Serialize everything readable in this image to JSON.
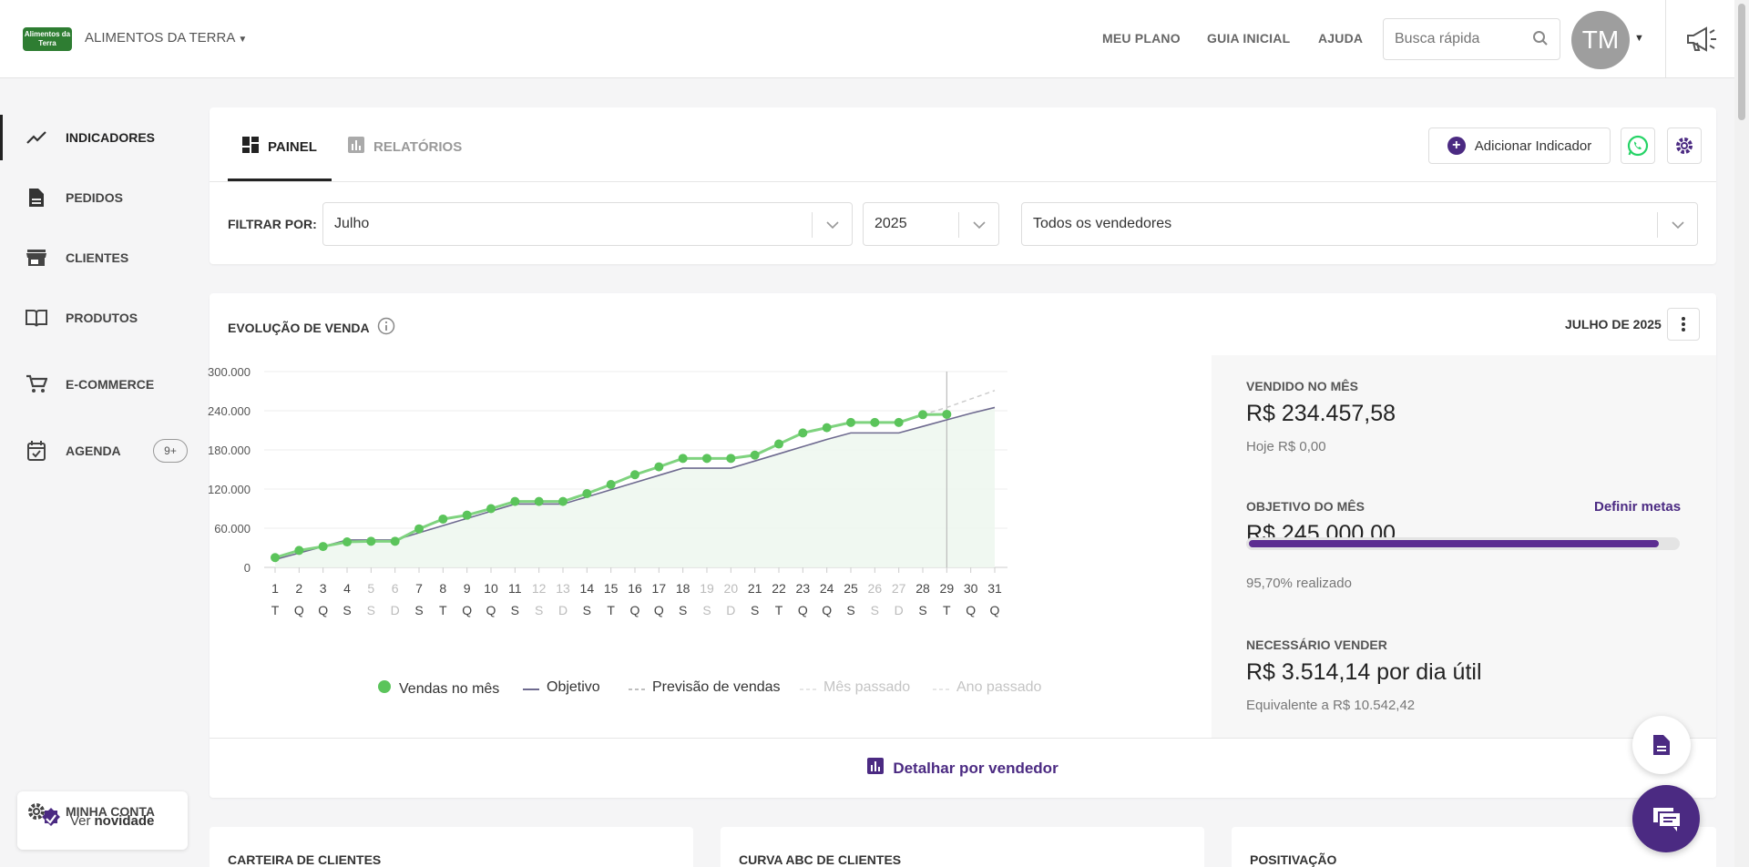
{
  "header": {
    "logo_text": "Alimentos da Terra",
    "company": "ALIMENTOS DA TERRA",
    "links": [
      "MEU PLANO",
      "GUIA INICIAL",
      "AJUDA"
    ],
    "search_placeholder": "Busca rápida",
    "avatar_initials": "TM"
  },
  "sidebar": {
    "items": [
      {
        "label": "INDICADORES",
        "icon": "trending-up-icon"
      },
      {
        "label": "PEDIDOS",
        "icon": "document-icon"
      },
      {
        "label": "CLIENTES",
        "icon": "store-icon"
      },
      {
        "label": "PRODUTOS",
        "icon": "book-icon"
      },
      {
        "label": "E-COMMERCE",
        "icon": "cart-icon"
      },
      {
        "label": "AGENDA",
        "icon": "calendar-check-icon",
        "badge": "9+"
      }
    ],
    "novidade_prefix": "Ver",
    "novidade_bold": "novidade",
    "account": "MINHA CONTA"
  },
  "tabs": {
    "painel": "PAINEL",
    "relatorios": "RELATÓRIOS",
    "add_indicator": "Adicionar Indicador"
  },
  "filters": {
    "label": "FILTRAR POR:",
    "month": "Julho",
    "year": "2025",
    "seller": "Todos os vendedores"
  },
  "chart_panel": {
    "title": "EVOLUÇÃO DE VENDA",
    "period": "JULHO DE 2025",
    "detail_link": "Detalhar por vendedor"
  },
  "stats": {
    "sold_label": "VENDIDO NO MÊS",
    "sold_value": "R$ 234.457,58",
    "today": "Hoje R$ 0,00",
    "goal_label": "OBJETIVO DO MÊS",
    "goal_link": "Definir metas",
    "goal_value": "R$ 245.000,00",
    "goal_progress": 0.957,
    "goal_done": "95,70% realizado",
    "need_label": "NECESSÁRIO VENDER",
    "need_value": "R$ 3.514,14 por dia útil",
    "need_equiv": "Equivalente a R$ 10.542,42"
  },
  "bottom_cards": [
    "CARTEIRA DE CLIENTES",
    "CURVA ABC DE CLIENTES",
    "POSITIVAÇÃO"
  ],
  "colors": {
    "accent": "#4b2a82",
    "sales_green": "#5bc45b",
    "goal_line": "#6e6a8f",
    "whatsapp": "#25d366"
  },
  "chart_data": {
    "type": "line",
    "title": "",
    "xlabel": "",
    "ylabel": "",
    "ylim": [
      0,
      300000
    ],
    "y_ticks": [
      "0",
      "60.000",
      "120.000",
      "180.000",
      "240.000",
      "300.000"
    ],
    "y_tick_values": [
      0,
      60000,
      120000,
      180000,
      240000,
      300000
    ],
    "days": [
      "1",
      "2",
      "3",
      "4",
      "5",
      "6",
      "7",
      "8",
      "9",
      "10",
      "11",
      "12",
      "13",
      "14",
      "15",
      "16",
      "17",
      "18",
      "19",
      "20",
      "21",
      "22",
      "23",
      "24",
      "25",
      "26",
      "27",
      "28",
      "29",
      "30",
      "31"
    ],
    "weekdays": [
      "T",
      "Q",
      "Q",
      "S",
      "S",
      "D",
      "S",
      "T",
      "Q",
      "Q",
      "S",
      "S",
      "D",
      "S",
      "T",
      "Q",
      "Q",
      "S",
      "S",
      "D",
      "S",
      "T",
      "Q",
      "Q",
      "S",
      "S",
      "D",
      "S",
      "T",
      "Q",
      "Q"
    ],
    "weekend_days": [
      5,
      6,
      12,
      13,
      19,
      20,
      26,
      27
    ],
    "today_day": 29,
    "series": [
      {
        "name": "Vendas no mês",
        "values": [
          15000,
          26000,
          32000,
          39000,
          40000,
          40000,
          59000,
          74000,
          80000,
          90000,
          101000,
          101000,
          101000,
          113000,
          127000,
          142000,
          154000,
          167000,
          167000,
          167000,
          172000,
          189000,
          206000,
          214000,
          222000,
          222000,
          222000,
          234000,
          234457
        ]
      },
      {
        "name": "Objetivo",
        "values": [
          12000,
          22000,
          32000,
          42000,
          42000,
          42000,
          53000,
          64000,
          75000,
          86000,
          97000,
          97000,
          97000,
          108000,
          119000,
          130000,
          141000,
          152000,
          152000,
          152000,
          163000,
          174000,
          185000,
          196000,
          206000,
          206000,
          206000,
          216000,
          226000,
          236000,
          245000
        ]
      },
      {
        "name": "Previsão de vendas",
        "values_from_day": 28,
        "values": [
          234000,
          245000,
          258000,
          271000
        ]
      }
    ],
    "legend": [
      {
        "name": "Vendas no mês",
        "style": "dot",
        "muted": false
      },
      {
        "name": "Objetivo",
        "style": "line",
        "muted": false
      },
      {
        "name": "Previsão de vendas",
        "style": "dash",
        "muted": false
      },
      {
        "name": "Mês passado",
        "style": "dash",
        "muted": true
      },
      {
        "name": "Ano passado",
        "style": "dash",
        "muted": true
      }
    ]
  }
}
